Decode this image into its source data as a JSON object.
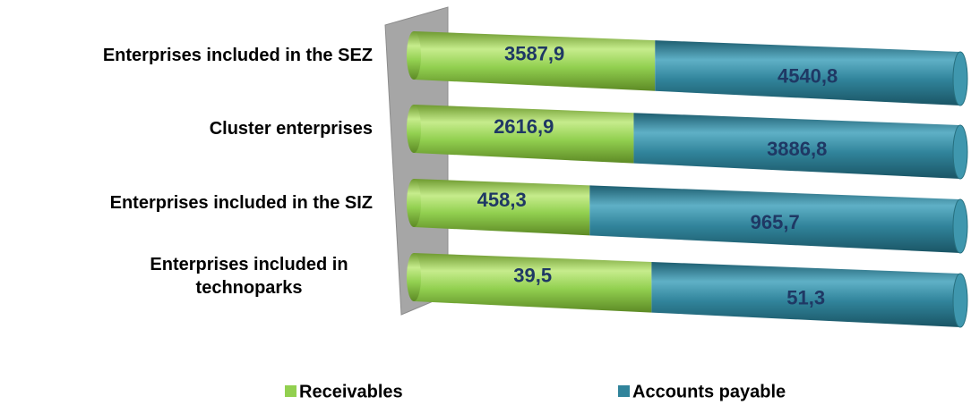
{
  "chart_data": {
    "type": "bar",
    "orientation": "horizontal",
    "stacking": "percent",
    "categories": [
      "Enterprises included in the SEZ",
      "Cluster enterprises",
      "Enterprises included in the SIZ",
      "Enterprises included in technoparks"
    ],
    "series": [
      {
        "name": "Receivables",
        "color": "#92d050",
        "values": [
          3587.9,
          2616.9,
          458.3,
          39.5
        ],
        "value_labels": [
          "3587,9",
          "2616,9",
          "458,3",
          "39,5"
        ]
      },
      {
        "name": "Accounts payable",
        "color": "#31849b",
        "values": [
          4540.8,
          3886.8,
          965.7,
          51.3
        ],
        "value_labels": [
          "4540,8",
          "3886,8",
          "965,7",
          "51,3"
        ]
      }
    ],
    "legend": "bottom"
  }
}
